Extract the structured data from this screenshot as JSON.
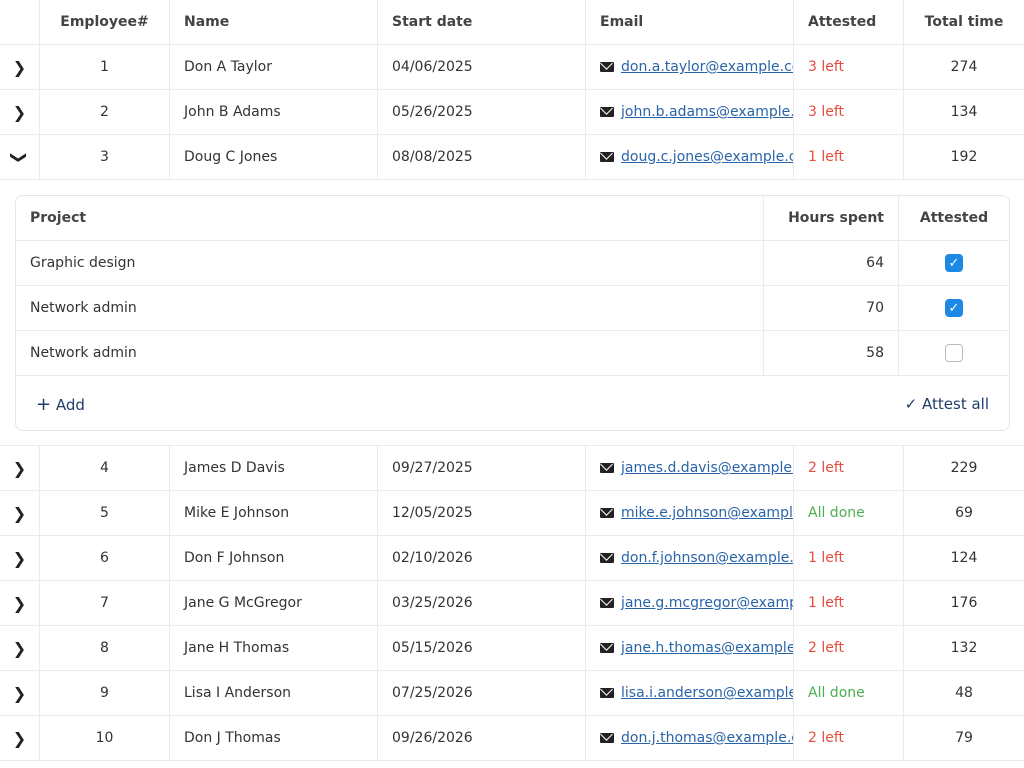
{
  "columns": [
    "",
    "Employee#",
    "Name",
    "Start date",
    "Email",
    "Attested",
    "Total time"
  ],
  "colors": {
    "pending": "#e74c3c",
    "done": "#4caf50",
    "link": "#2a64a8",
    "checkbox": "#1e88e5"
  },
  "rows_before": [
    {
      "id": "1",
      "name": "Don A Taylor",
      "start": "04/06/2025",
      "email": "don.a.taylor@example.com",
      "attested": "3 left",
      "status": "pending",
      "total": "274"
    },
    {
      "id": "2",
      "name": "John B Adams",
      "start": "05/26/2025",
      "email": "john.b.adams@example.com",
      "attested": "3 left",
      "status": "pending",
      "total": "134"
    },
    {
      "id": "3",
      "name": "Doug C Jones",
      "start": "08/08/2025",
      "email": "doug.c.jones@example.com",
      "attested": "1 left",
      "status": "pending",
      "total": "192",
      "expanded": true
    }
  ],
  "detail": {
    "columns": [
      "Project",
      "Hours spent",
      "Attested"
    ],
    "rows": [
      {
        "project": "Graphic design",
        "hours": "64",
        "attested": true
      },
      {
        "project": "Network admin",
        "hours": "70",
        "attested": true
      },
      {
        "project": "Network admin",
        "hours": "58",
        "attested": false
      }
    ],
    "add_label": "Add",
    "attest_all_label": "Attest all"
  },
  "rows_after": [
    {
      "id": "4",
      "name": "James D Davis",
      "start": "09/27/2025",
      "email": "james.d.davis@example.com",
      "attested": "2 left",
      "status": "pending",
      "total": "229"
    },
    {
      "id": "5",
      "name": "Mike E Johnson",
      "start": "12/05/2025",
      "email": "mike.e.johnson@example.com",
      "attested": "All done",
      "status": "done",
      "total": "69"
    },
    {
      "id": "6",
      "name": "Don F Johnson",
      "start": "02/10/2026",
      "email": "don.f.johnson@example.com",
      "attested": "1 left",
      "status": "pending",
      "total": "124"
    },
    {
      "id": "7",
      "name": "Jane G McGregor",
      "start": "03/25/2026",
      "email": "jane.g.mcgregor@example.com",
      "attested": "1 left",
      "status": "pending",
      "total": "176"
    },
    {
      "id": "8",
      "name": "Jane H Thomas",
      "start": "05/15/2026",
      "email": "jane.h.thomas@example.com",
      "attested": "2 left",
      "status": "pending",
      "total": "132"
    },
    {
      "id": "9",
      "name": "Lisa I Anderson",
      "start": "07/25/2026",
      "email": "lisa.i.anderson@example.com",
      "attested": "All done",
      "status": "done",
      "total": "48"
    },
    {
      "id": "10",
      "name": "Don J Thomas",
      "start": "09/26/2026",
      "email": "don.j.thomas@example.com",
      "attested": "2 left",
      "status": "pending",
      "total": "79"
    }
  ]
}
